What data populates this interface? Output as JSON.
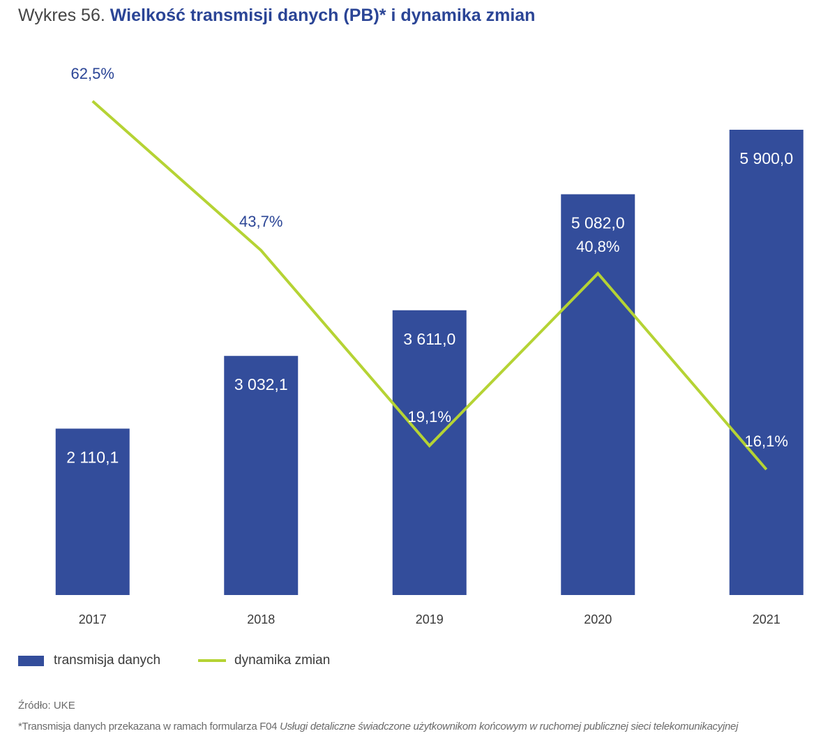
{
  "title": {
    "prefix": "Wykres 56.",
    "main": "Wielkość transmisji danych (PB)* i dynamika zmian"
  },
  "colors": {
    "bar": "#334d9b",
    "line": "#b5d334",
    "label_dark": "#2b4596",
    "label_light": "#ffffff",
    "axis_text": "#3a3a3a"
  },
  "chart_data": {
    "type": "bar",
    "title": "Wielkość transmisji danych (PB)* i dynamika zmian",
    "categories": [
      "2017",
      "2018",
      "2019",
      "2020",
      "2021"
    ],
    "series": [
      {
        "name": "transmisja danych",
        "type": "bar",
        "values": [
          2110.1,
          3032.1,
          3611.0,
          5082.0,
          5900.0
        ],
        "labels": [
          "2 110,1",
          "3 032,1",
          "3 611,0",
          "5 082,0",
          "5 900,0"
        ],
        "ylim": [
          0,
          6300
        ]
      },
      {
        "name": "dynamika zmian",
        "type": "line",
        "values": [
          62.5,
          43.7,
          19.1,
          40.8,
          16.1
        ],
        "labels": [
          "62,5%",
          "43,7%",
          "19,1%",
          "40,8%",
          "16,1%"
        ],
        "ylim": [
          12,
          67
        ]
      }
    ],
    "xlabel": "",
    "ylabel": "",
    "grid": false,
    "legend_position": "bottom-left"
  },
  "legend": {
    "bar_label": "transmisja danych",
    "line_label": "dynamika zmian"
  },
  "source": "Źródło: UKE",
  "footnote": {
    "prefix": "*Transmisja danych przekazana w ramach formularza F04 ",
    "italic": "Usługi detaliczne świadczone użytkownikom końcowym w ruchomej publicznej sieci telekomunikacyjnej"
  }
}
